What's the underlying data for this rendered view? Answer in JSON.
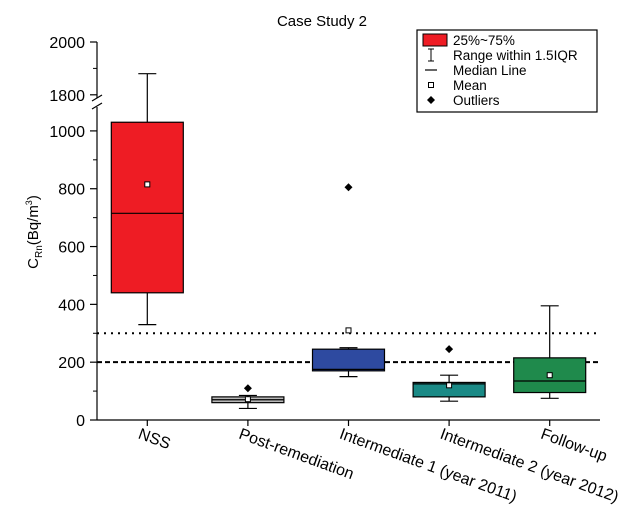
{
  "chart_data": {
    "type": "box",
    "title": "Case Study 2",
    "ylabel": {
      "main": "C",
      "sub": "Rn",
      "unit_open": "(Bq/m",
      "sup": "3",
      "unit_close": ")"
    },
    "y_axis_break": {
      "lower_range": [
        0,
        1100
      ],
      "upper_range": [
        1750,
        2000
      ]
    },
    "y_ticks_lower": [
      0,
      200,
      400,
      600,
      800,
      1000
    ],
    "y_ticks_upper": [
      1800,
      2000
    ],
    "categories": [
      "NSS",
      "Post-remediation",
      "Intermediate 1 (year 2011)",
      "Intermediate 2 (year 2012)",
      "Follow-up"
    ],
    "boxes": [
      {
        "category": "NSS",
        "q1": 440,
        "median": 715,
        "q3": 1030,
        "whisker_low": 330,
        "whisker_high": 1880,
        "mean": 815,
        "outliers": [],
        "color": "#ee1c24"
      },
      {
        "category": "Post-remediation",
        "q1": 60,
        "median": 70,
        "q3": 80,
        "whisker_low": 40,
        "whisker_high": 85,
        "mean": 72,
        "outliers": [
          110
        ],
        "color": "#b8b8b8"
      },
      {
        "category": "Intermediate 1 (year 2011)",
        "q1": 170,
        "median": 175,
        "q3": 245,
        "whisker_low": 150,
        "whisker_high": 250,
        "mean": 310,
        "outliers": [
          805
        ],
        "color": "#2e4aa0"
      },
      {
        "category": "Intermediate 2 (year 2012)",
        "q1": 80,
        "median": 125,
        "q3": 130,
        "whisker_low": 65,
        "whisker_high": 155,
        "mean": 120,
        "outliers": [
          245
        ],
        "color": "#1a8a86"
      },
      {
        "category": "Follow-up",
        "q1": 95,
        "median": 135,
        "q3": 215,
        "whisker_low": 75,
        "whisker_high": 395,
        "mean": 155,
        "outliers": [],
        "color": "#1f8a4c"
      }
    ],
    "reference_lines": [
      {
        "value": 300,
        "style": "dotted"
      },
      {
        "value": 200,
        "style": "dashed"
      }
    ],
    "legend": {
      "position": "top-right",
      "items": [
        {
          "symbol": "box",
          "label": "25%~75%"
        },
        {
          "symbol": "whisker",
          "label": "Range within 1.5IQR"
        },
        {
          "symbol": "line",
          "label": "Median Line"
        },
        {
          "symbol": "square",
          "label": "Mean"
        },
        {
          "symbol": "diamond",
          "label": "Outliers"
        }
      ]
    },
    "grid": false
  }
}
